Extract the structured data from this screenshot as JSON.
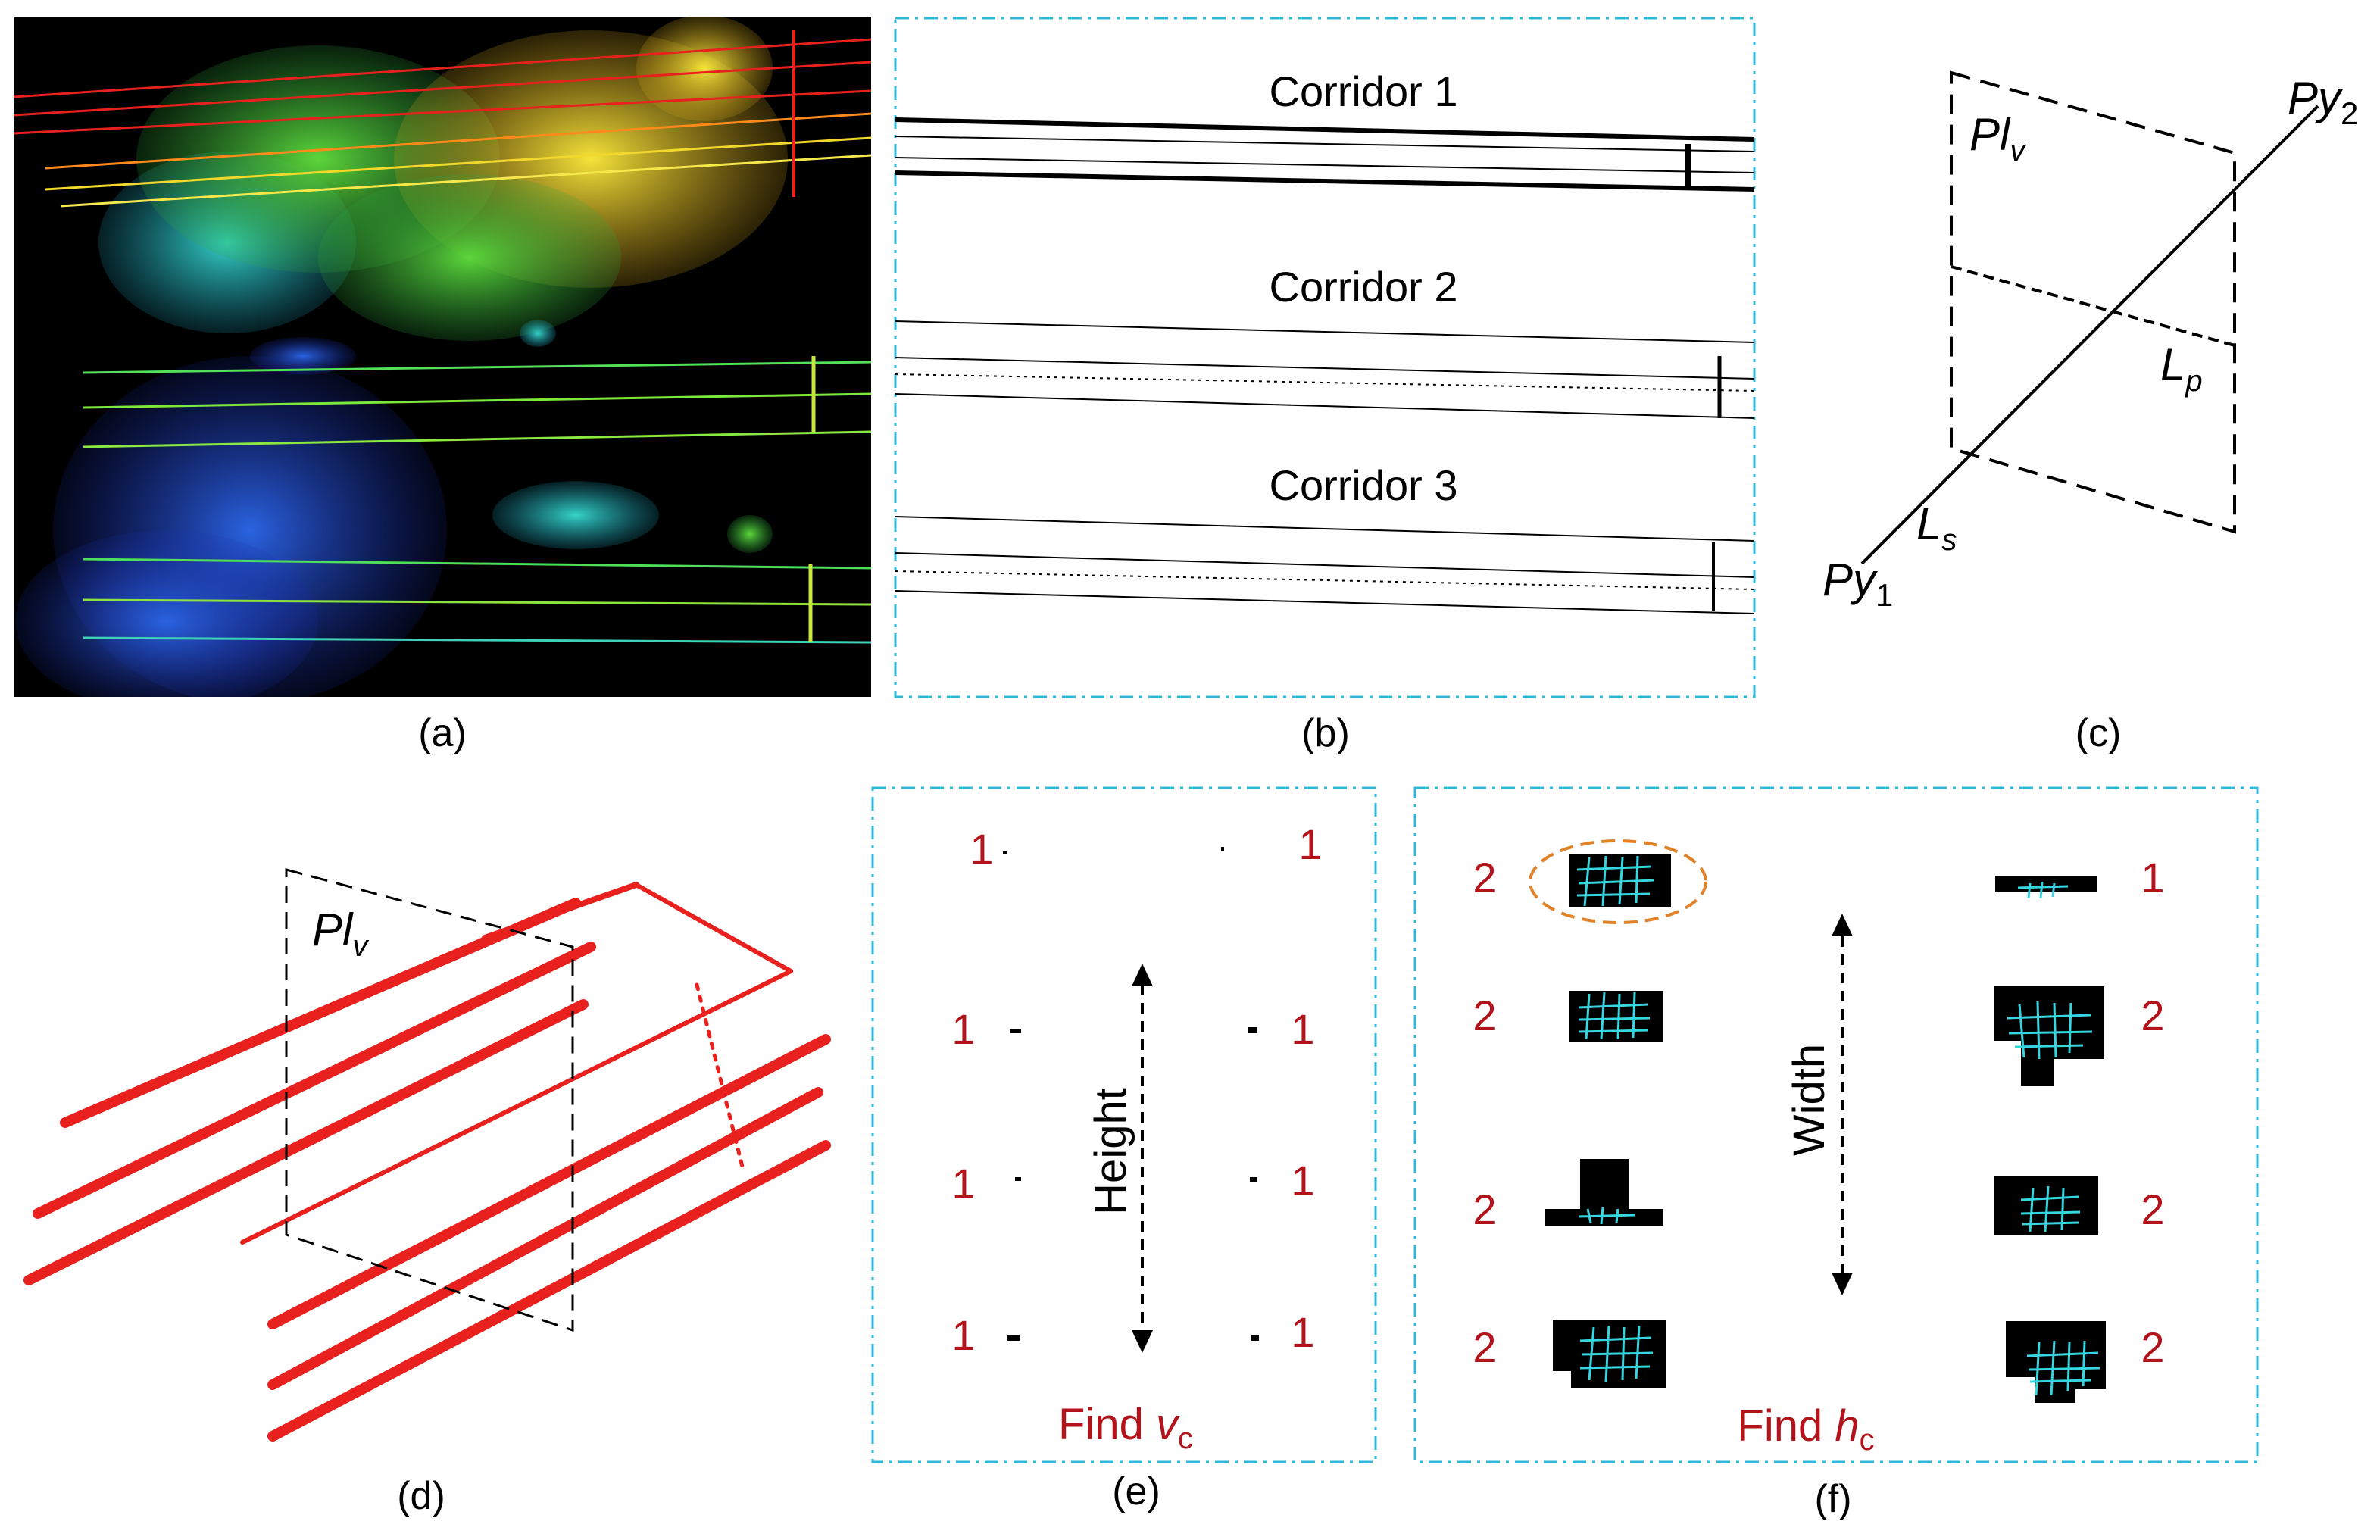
{
  "colors": {
    "accent_red": "#b3131b",
    "cyan_border": "#2fb8d8",
    "cyan_mesh": "#35d6e0",
    "orange_ellipse": "#e0822a",
    "wire_red": "#e8211f",
    "black": "#000000"
  },
  "panel_a": {
    "caption": "(a)"
  },
  "panel_b": {
    "caption": "(b)",
    "corridors": [
      "Corridor 1",
      "Corridor 2",
      "Corridor 3"
    ]
  },
  "panel_c": {
    "caption": "(c)",
    "plane_label": "Pl",
    "plane_sub": "v",
    "line_p_label": "L",
    "line_p_sub": "p",
    "line_s_label": "L",
    "line_s_sub": "s",
    "py1_label": "Py",
    "py1_sub": "1",
    "py2_label": "Py",
    "py2_sub": "2"
  },
  "panel_d": {
    "caption": "(d)",
    "plane_label": "Pl",
    "plane_sub": "v"
  },
  "panel_e": {
    "caption": "(e)",
    "axis_label": "Height",
    "find_prefix": "Find ",
    "find_var": "v",
    "find_sub": "c",
    "left_counts": [
      "1",
      "1",
      "1",
      "1"
    ],
    "right_counts": [
      "1",
      "1",
      "1",
      "1"
    ]
  },
  "panel_f": {
    "caption": "(f)",
    "axis_label": "Width",
    "find_prefix": "Find ",
    "find_var": "h",
    "find_sub": "c",
    "left_counts": [
      "2",
      "2",
      "2",
      "2"
    ],
    "right_counts": [
      "1",
      "2",
      "2",
      "2"
    ]
  }
}
